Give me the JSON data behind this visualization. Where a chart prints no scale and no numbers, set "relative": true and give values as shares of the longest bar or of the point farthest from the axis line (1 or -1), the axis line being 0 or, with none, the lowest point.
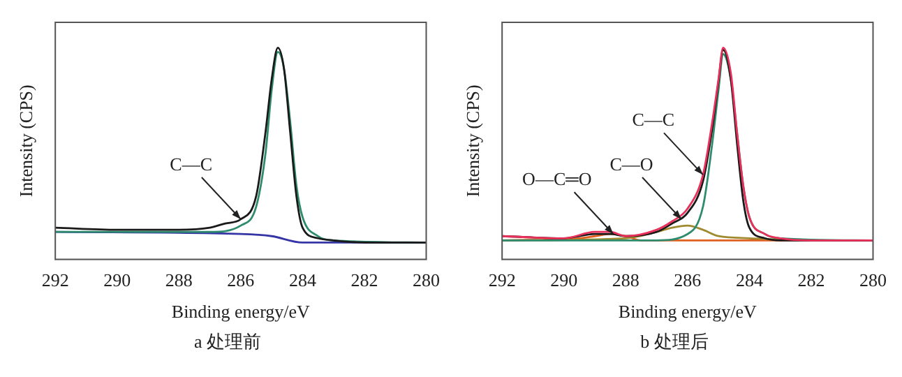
{
  "chart_data": [
    {
      "type": "line",
      "title": "a 处理前",
      "xlabel": "Binding energy/eV",
      "ylabel": "Intensity (CPS)",
      "relative": true,
      "xlim": [
        292,
        280
      ],
      "xticks": [
        292,
        290,
        288,
        286,
        284,
        282,
        280
      ],
      "grid": false,
      "legend": false,
      "annotations": [
        {
          "text": "C—C",
          "x": 286,
          "y": 0.19
        }
      ],
      "series": [
        {
          "color": "#1a1a1a",
          "x": [
            292,
            290,
            288,
            287,
            286.5,
            286,
            285.5,
            285.2,
            285,
            284.8,
            284.6,
            284.4,
            284.2,
            284,
            283.5,
            283,
            282,
            280
          ],
          "values": [
            0.15,
            0.14,
            0.14,
            0.15,
            0.17,
            0.19,
            0.3,
            0.6,
            0.85,
            1,
            0.9,
            0.6,
            0.3,
            0.15,
            0.1,
            0.09,
            0.08,
            0.08
          ]
        },
        {
          "color": "#2e8b6e",
          "x": [
            292,
            288,
            287,
            286,
            285.5,
            285.2,
            285,
            284.8,
            284.6,
            284.4,
            284.2,
            284,
            283.5,
            283,
            280
          ],
          "values": [
            0.13,
            0.13,
            0.13,
            0.16,
            0.25,
            0.5,
            0.8,
            0.98,
            0.9,
            0.65,
            0.35,
            0.2,
            0.11,
            0.09,
            0.08
          ]
        },
        {
          "color": "#3535a5",
          "x": [
            292,
            286,
            285,
            284,
            280
          ],
          "values": [
            0.13,
            0.12,
            0.11,
            0.08,
            0.08
          ]
        }
      ]
    },
    {
      "type": "line",
      "title": "b 处理后",
      "xlabel": "Binding energy/eV",
      "ylabel": "Intensity (CPS)",
      "relative": true,
      "xlim": [
        292,
        280
      ],
      "xticks": [
        292,
        290,
        288,
        286,
        284,
        282,
        280
      ],
      "grid": false,
      "legend": false,
      "annotations": [
        {
          "text": "O—C═O",
          "x": 288.4,
          "y": 0.12
        },
        {
          "text": "C—O",
          "x": 286.2,
          "y": 0.19
        },
        {
          "text": "C—C",
          "x": 285.5,
          "y": 0.4
        }
      ],
      "series": [
        {
          "color": "#e8305a",
          "x": [
            292,
            290,
            289,
            288.5,
            288,
            287,
            286.5,
            286,
            285.5,
            285.2,
            285,
            284.85,
            284.6,
            284.4,
            284.2,
            284,
            283.5,
            283,
            282,
            280
          ],
          "values": [
            0.11,
            0.1,
            0.13,
            0.13,
            0.11,
            0.14,
            0.18,
            0.24,
            0.4,
            0.65,
            0.85,
            1,
            0.88,
            0.6,
            0.35,
            0.2,
            0.12,
            0.1,
            0.09,
            0.09
          ]
        },
        {
          "color": "#1a1a1a",
          "x": [
            292,
            290,
            289,
            288.5,
            288,
            287,
            286.5,
            286,
            285.5,
            285.2,
            285,
            284.85,
            284.6,
            284.4,
            284.2,
            284,
            283.5,
            283,
            282,
            280
          ],
          "values": [
            0.11,
            0.1,
            0.12,
            0.12,
            0.11,
            0.13,
            0.17,
            0.22,
            0.37,
            0.62,
            0.84,
            0.99,
            0.85,
            0.55,
            0.28,
            0.15,
            0.1,
            0.09,
            0.09,
            0.09
          ]
        },
        {
          "color": "#2e8b6e",
          "x": [
            292,
            287,
            286,
            285.5,
            285.2,
            285,
            284.85,
            284.6,
            284.4,
            284.2,
            284,
            283.5,
            283,
            280
          ],
          "values": [
            0.09,
            0.09,
            0.12,
            0.25,
            0.55,
            0.8,
            0.97,
            0.85,
            0.6,
            0.35,
            0.2,
            0.12,
            0.1,
            0.09
          ]
        },
        {
          "color": "#a08a30",
          "x": [
            292,
            288,
            287,
            286.5,
            286,
            285.5,
            285,
            284,
            282,
            280
          ],
          "values": [
            0.09,
            0.1,
            0.13,
            0.15,
            0.16,
            0.14,
            0.11,
            0.1,
            0.09,
            0.09
          ]
        },
        {
          "color": "#e06020",
          "x": [
            292,
            289.5,
            289,
            288.5,
            288,
            287.5,
            286,
            280
          ],
          "values": [
            0.09,
            0.1,
            0.11,
            0.12,
            0.11,
            0.09,
            0.09,
            0.09
          ]
        }
      ]
    }
  ]
}
